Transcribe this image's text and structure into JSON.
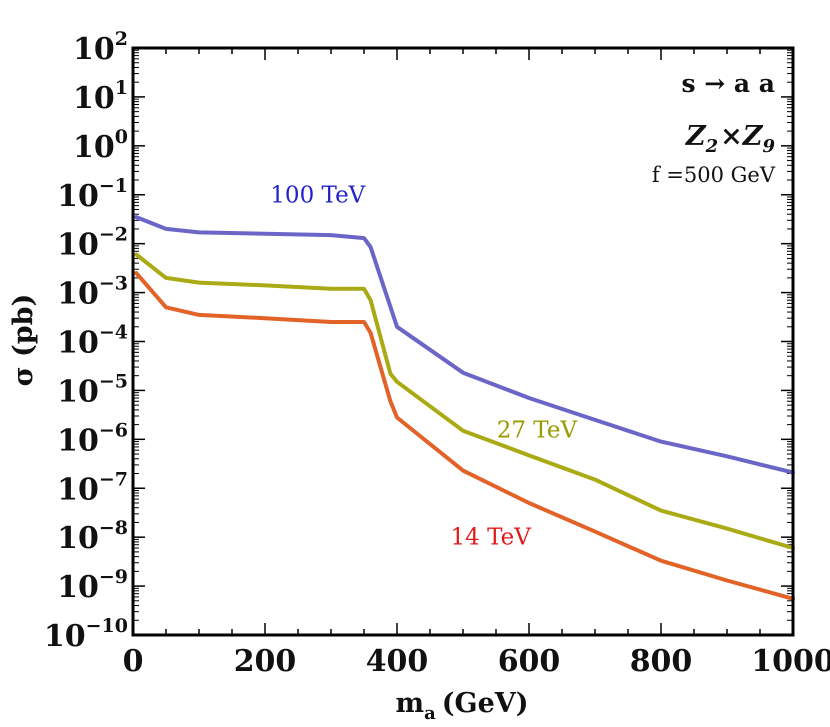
{
  "chart_data": {
    "type": "line",
    "title": "",
    "xlabel": "m",
    "xlabel_sub": "a",
    "xlabel_unit": "(GeV)",
    "ylabel": "σ (pb)",
    "xlim": [
      0,
      1000
    ],
    "ylim_log10": [
      -10,
      2
    ],
    "yscale": "log",
    "grid": false,
    "x_ticks": [
      {
        "value": 0,
        "label": "0"
      },
      {
        "value": 200,
        "label": "200"
      },
      {
        "value": 400,
        "label": "400"
      },
      {
        "value": 600,
        "label": "600"
      },
      {
        "value": 800,
        "label": "800"
      },
      {
        "value": 1000,
        "label": "1000"
      }
    ],
    "y_ticks": [
      {
        "exp": 2,
        "base": "10",
        "sup": "2"
      },
      {
        "exp": 1,
        "base": "10",
        "sup": "1"
      },
      {
        "exp": 0,
        "base": "10",
        "sup": "0"
      },
      {
        "exp": -1,
        "base": "10",
        "sup": "−1"
      },
      {
        "exp": -2,
        "base": "10",
        "sup": "−2"
      },
      {
        "exp": -3,
        "base": "10",
        "sup": "−3"
      },
      {
        "exp": -4,
        "base": "10",
        "sup": "−4"
      },
      {
        "exp": -5,
        "base": "10",
        "sup": "−5"
      },
      {
        "exp": -6,
        "base": "10",
        "sup": "−6"
      },
      {
        "exp": -7,
        "base": "10",
        "sup": "−7"
      },
      {
        "exp": -8,
        "base": "10",
        "sup": "−8"
      },
      {
        "exp": -9,
        "base": "10",
        "sup": "−9"
      },
      {
        "exp": -10,
        "base": "10",
        "sup": "−10"
      }
    ],
    "series": [
      {
        "name": "100 TeV",
        "color": "#6b65c8",
        "label_color": "#2222cc",
        "x": [
          5,
          50,
          100,
          200,
          300,
          350,
          360,
          400,
          500,
          600,
          700,
          800,
          900,
          1000
        ],
        "y": [
          0.035,
          0.02,
          0.017,
          0.016,
          0.015,
          0.013,
          0.0085,
          0.0002,
          2.3e-05,
          7e-06,
          2.5e-06,
          9e-07,
          4.5e-07,
          2.1e-07
        ]
      },
      {
        "name": "27 TeV",
        "color": "#aaaa15",
        "label_color": "#9a9a00",
        "x": [
          5,
          50,
          100,
          200,
          300,
          350,
          360,
          390,
          400,
          500,
          600,
          700,
          800,
          900,
          1000
        ],
        "y": [
          0.006,
          0.002,
          0.0016,
          0.0014,
          0.0012,
          0.0012,
          0.0007,
          2.2e-05,
          1.5e-05,
          1.5e-06,
          4.7e-07,
          1.5e-07,
          3.5e-08,
          1.5e-08,
          6e-09
        ]
      },
      {
        "name": "14 TeV",
        "color": "#e36228",
        "label_color": "#e01a1a",
        "x": [
          5,
          50,
          100,
          200,
          300,
          350,
          360,
          390,
          400,
          500,
          600,
          700,
          800,
          900,
          1000
        ],
        "y": [
          0.0025,
          0.0005,
          0.00035,
          0.0003,
          0.00025,
          0.00025,
          0.00015,
          6e-06,
          2.8e-06,
          2.3e-07,
          5e-08,
          1.3e-08,
          3.3e-09,
          1.3e-09,
          5.5e-10
        ]
      }
    ],
    "series_labels": [
      {
        "text": "100 TeV",
        "x": 280,
        "y": 0.07
      },
      {
        "text": "27 TeV",
        "x": 612,
        "y": 1.1e-06
      },
      {
        "text": "14 TeV",
        "x": 542,
        "y": 7e-09
      }
    ],
    "annotations": {
      "process": "s → a a",
      "symmetry_a": "Z",
      "symmetry_a_sub": "2",
      "symmetry_times": "×",
      "symmetry_b": "Z",
      "symmetry_b_sub": "9",
      "param": "f =500 GeV"
    }
  }
}
